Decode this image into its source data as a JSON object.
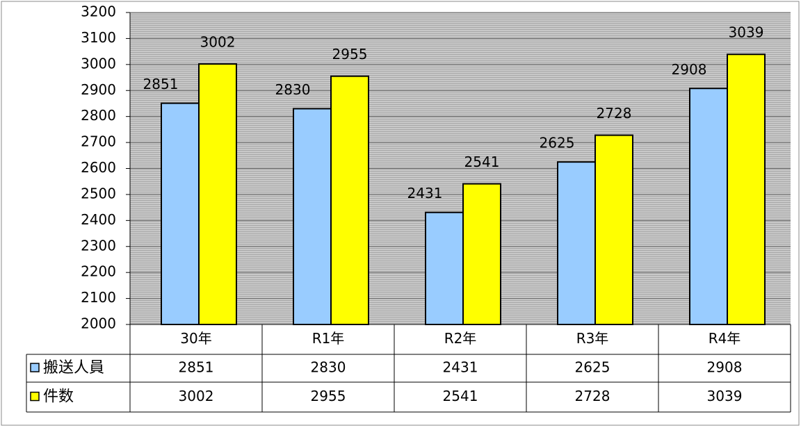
{
  "chart_data": {
    "type": "bar",
    "categories": [
      "30年",
      "R1年",
      "R2年",
      "R3年",
      "R4年"
    ],
    "series": [
      {
        "name": "搬送人員",
        "color": "#99ccff",
        "values": [
          2851,
          2830,
          2431,
          2625,
          2908
        ]
      },
      {
        "name": "件数",
        "color": "#ffff00",
        "values": [
          3002,
          2955,
          2541,
          2728,
          3039
        ]
      }
    ],
    "ylim": [
      2000,
      3200
    ],
    "yticks": [
      2000,
      2100,
      2200,
      2300,
      2400,
      2500,
      2600,
      2700,
      2800,
      2900,
      3000,
      3100,
      3200
    ],
    "grid": true
  }
}
